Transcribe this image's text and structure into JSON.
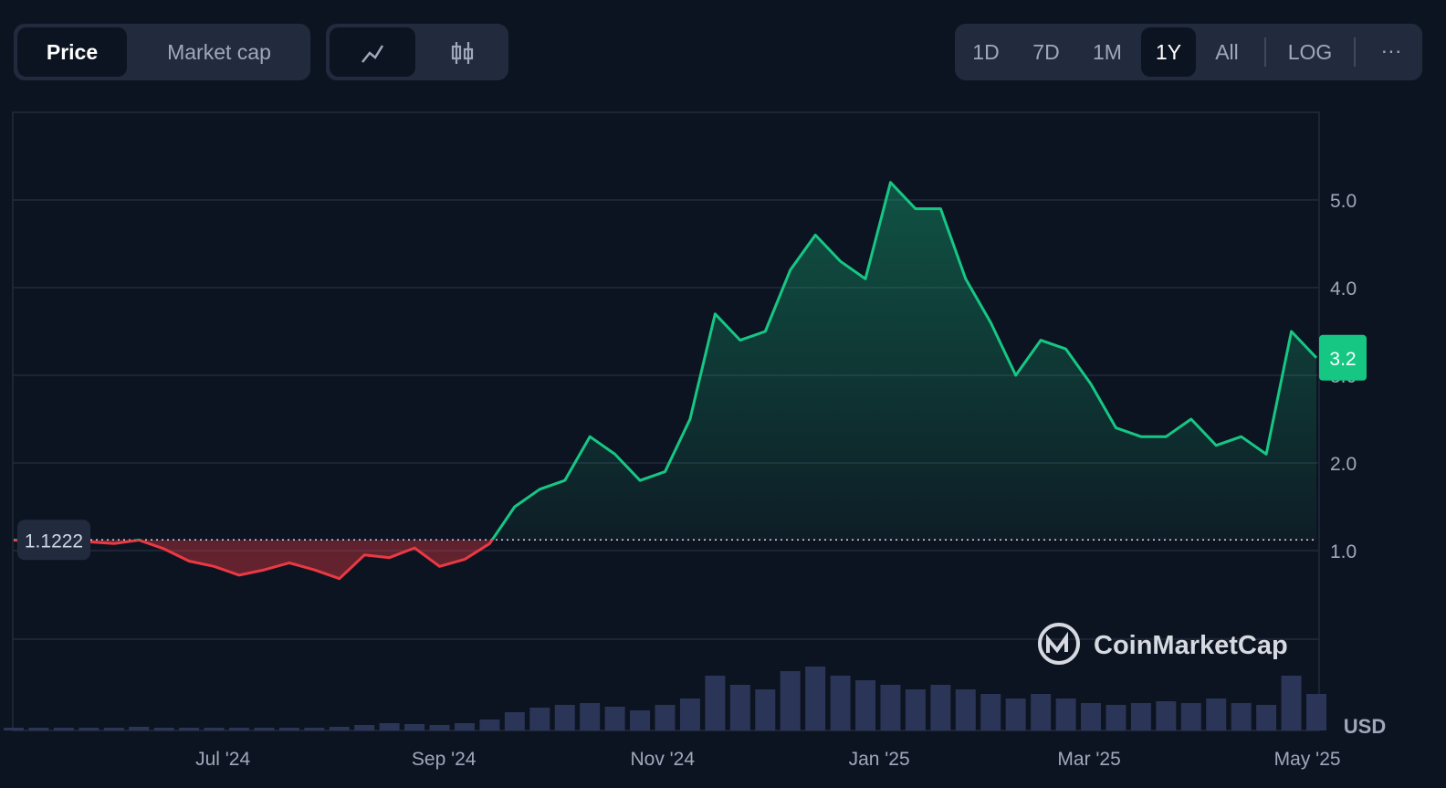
{
  "controls": {
    "view_tabs": [
      "Price",
      "Market cap"
    ],
    "ranges": [
      "1D",
      "7D",
      "1M",
      "1Y",
      "All"
    ],
    "scale": "LOG",
    "more": "···",
    "active_range": "1Y"
  },
  "watermark": "CoinMarketCap",
  "chart_data": {
    "type": "line",
    "series": [
      {
        "name": "Price",
        "color": "#16c784",
        "below_color": "#ea3943",
        "values": [
          1.12,
          1.1,
          1.1,
          1.1,
          1.08,
          1.12,
          1.02,
          0.88,
          0.82,
          0.72,
          0.78,
          0.86,
          0.78,
          0.68,
          0.95,
          0.92,
          1.03,
          0.82,
          0.9,
          1.08,
          1.5,
          1.7,
          1.8,
          2.3,
          2.1,
          1.8,
          1.9,
          2.5,
          3.7,
          3.4,
          3.5,
          4.2,
          4.6,
          4.3,
          4.1,
          5.2,
          4.9,
          4.9,
          4.1,
          3.6,
          3.0,
          3.4,
          3.3,
          2.9,
          2.4,
          2.3,
          2.3,
          2.5,
          2.2,
          2.3,
          2.1,
          3.5,
          3.2
        ]
      }
    ],
    "volume": {
      "color": "#2b3557",
      "values": [
        3,
        3,
        3,
        3,
        3,
        4,
        3,
        3,
        3,
        3,
        3,
        3,
        3,
        4,
        6,
        8,
        7,
        6,
        8,
        12,
        20,
        25,
        28,
        30,
        26,
        22,
        28,
        35,
        60,
        50,
        45,
        65,
        70,
        60,
        55,
        50,
        45,
        50,
        45,
        40,
        35,
        40,
        35,
        30,
        28,
        30,
        32,
        30,
        35,
        30,
        28,
        60,
        40
      ]
    },
    "baseline": 1.1222,
    "xlim": [
      0,
      52
    ],
    "xticks": [
      {
        "value": 8.35,
        "label": "Jul '24"
      },
      {
        "value": 17.17,
        "label": "Sep '24"
      },
      {
        "value": 25.9,
        "label": "Nov '24"
      },
      {
        "value": 34.55,
        "label": "Jan '25"
      },
      {
        "value": 42.93,
        "label": "Mar '25"
      },
      {
        "value": 51.64,
        "label": "May '25"
      }
    ],
    "ylim": [
      0,
      6
    ],
    "yticks": [
      {
        "value": 1,
        "label": "1.0"
      },
      {
        "value": 2,
        "label": "2.0"
      },
      {
        "value": 3,
        "label": "3.0"
      },
      {
        "value": 4,
        "label": "4.0"
      },
      {
        "value": 5,
        "label": "5.0"
      }
    ],
    "currency": "USD",
    "grid": true
  }
}
